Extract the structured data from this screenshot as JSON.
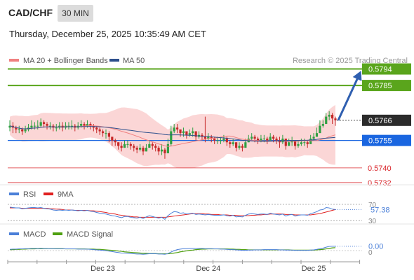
{
  "header": {
    "pair": "CAD/CHF",
    "interval": "30 MIN",
    "datetime": "Thursday, December 25, 2025 10:35:49 AM CET"
  },
  "watermark": "Research © 2025 Trading Central",
  "colors": {
    "green": "#5aa51c",
    "blue": "#1a66e0",
    "red": "#d9252b",
    "dark": "#2b2b2b",
    "rsi": "#4a7fd8",
    "ma9": "#e02020",
    "macd": "#4a7fd8",
    "signal": "#4fa010",
    "arrow": "#2f5fb0",
    "band": "#f9c8c8",
    "ma20": "#f08080",
    "ma50": "#2d4f8c"
  },
  "chart_data": [
    {
      "type": "candlestick",
      "panel": "price",
      "legend": [
        {
          "name": "MA 20 + Bollinger Bands",
          "color": "#f08080"
        },
        {
          "name": "MA 50",
          "color": "#2d4f8c"
        }
      ],
      "ylim": [
        0.57285,
        0.57965
      ],
      "levels": [
        {
          "value": 0.5794,
          "label": "0.5794",
          "style": "green-box"
        },
        {
          "value": 0.5785,
          "label": "0.5785",
          "style": "green-box"
        },
        {
          "value": 0.5766,
          "label": "0.5766",
          "style": "dark-box"
        },
        {
          "value": 0.5755,
          "label": "0.5755",
          "style": "blue-box"
        },
        {
          "value": 0.574,
          "label": "0.5740",
          "style": "red-text"
        },
        {
          "value": 0.5732,
          "label": "0.5732",
          "style": "red-text"
        }
      ],
      "close_series": [
        0.5763,
        0.5762,
        0.5761,
        0.5761,
        0.576,
        0.5761,
        0.5762,
        0.5763,
        0.5763,
        0.5763,
        0.5765,
        0.5764,
        0.5763,
        0.5763,
        0.5762,
        0.5762,
        0.5763,
        0.5762,
        0.5763,
        0.5763,
        0.5763,
        0.5762,
        0.5763,
        0.5764,
        0.5763,
        0.5764,
        0.5763,
        0.5762,
        0.5761,
        0.576,
        0.5759,
        0.5759,
        0.5757,
        0.5755,
        0.5754,
        0.5752,
        0.5751,
        0.5753,
        0.5753,
        0.5752,
        0.5751,
        0.575,
        0.5751,
        0.5749,
        0.5751,
        0.5753,
        0.5752,
        0.5751,
        0.5749,
        0.575,
        0.5748,
        0.5753,
        0.576,
        0.5762,
        0.5761,
        0.5759,
        0.576,
        0.5758,
        0.5759,
        0.576,
        0.5757,
        0.5758,
        0.5757,
        0.5756,
        0.5757,
        0.5756,
        0.5755,
        0.5755,
        0.5755,
        0.5756,
        0.5754,
        0.5753,
        0.5754,
        0.5751,
        0.5752,
        0.5751,
        0.5754,
        0.5756,
        0.5757,
        0.5756,
        0.5755,
        0.5756,
        0.5756,
        0.5755,
        0.5757,
        0.5756,
        0.5755,
        0.5754,
        0.5756,
        0.5752,
        0.5754,
        0.5755,
        0.5752,
        0.5753,
        0.5754,
        0.5754,
        0.5753,
        0.5756,
        0.5757,
        0.5759,
        0.5763,
        0.5764,
        0.5768,
        0.5769,
        0.5767,
        0.5766
      ],
      "high_series": [
        0.5766,
        0.5765,
        0.5763,
        0.5763,
        0.5762,
        0.5763,
        0.5764,
        0.5766,
        0.5765,
        0.5766,
        0.5767,
        0.5766,
        0.5765,
        0.5765,
        0.5764,
        0.5764,
        0.5765,
        0.5765,
        0.5765,
        0.5765,
        0.5766,
        0.5764,
        0.5765,
        0.5766,
        0.5765,
        0.5766,
        0.5765,
        0.5764,
        0.5763,
        0.5762,
        0.5761,
        0.5761,
        0.576,
        0.5757,
        0.5756,
        0.5754,
        0.5754,
        0.5755,
        0.5755,
        0.5754,
        0.5753,
        0.5752,
        0.5753,
        0.5752,
        0.5753,
        0.5755,
        0.5754,
        0.5753,
        0.5752,
        0.5753,
        0.5751,
        0.5756,
        0.5763,
        0.5764,
        0.5764,
        0.5761,
        0.5762,
        0.576,
        0.5761,
        0.5762,
        0.576,
        0.576,
        0.5759,
        0.5768,
        0.5759,
        0.5758,
        0.5757,
        0.5757,
        0.5757,
        0.5758,
        0.5757,
        0.5755,
        0.5756,
        0.5754,
        0.5754,
        0.5753,
        0.5756,
        0.5758,
        0.5759,
        0.5758,
        0.5757,
        0.5758,
        0.5758,
        0.5757,
        0.5759,
        0.5758,
        0.5757,
        0.5757,
        0.5758,
        0.5755,
        0.5756,
        0.5757,
        0.5755,
        0.5755,
        0.5756,
        0.5756,
        0.5755,
        0.5758,
        0.5759,
        0.5762,
        0.5766,
        0.5766,
        0.577,
        0.5771,
        0.577,
        0.5768
      ],
      "low_series": [
        0.576,
        0.5759,
        0.5759,
        0.5759,
        0.5758,
        0.5759,
        0.576,
        0.5761,
        0.5761,
        0.5761,
        0.5762,
        0.5762,
        0.5761,
        0.5761,
        0.576,
        0.576,
        0.5761,
        0.576,
        0.5761,
        0.5761,
        0.5761,
        0.576,
        0.5761,
        0.5762,
        0.5761,
        0.5762,
        0.5761,
        0.576,
        0.5759,
        0.5758,
        0.5757,
        0.5756,
        0.5754,
        0.5752,
        0.5752,
        0.575,
        0.5749,
        0.5751,
        0.5751,
        0.575,
        0.5749,
        0.5748,
        0.5749,
        0.5747,
        0.5749,
        0.5751,
        0.575,
        0.5749,
        0.5747,
        0.5747,
        0.5745,
        0.5748,
        0.5752,
        0.5759,
        0.5759,
        0.5757,
        0.5757,
        0.5756,
        0.5757,
        0.5757,
        0.5755,
        0.5756,
        0.5755,
        0.5754,
        0.5755,
        0.5754,
        0.5753,
        0.5753,
        0.5753,
        0.5754,
        0.5752,
        0.5751,
        0.5752,
        0.5749,
        0.575,
        0.5749,
        0.5751,
        0.5754,
        0.5755,
        0.5754,
        0.5753,
        0.5754,
        0.5754,
        0.5753,
        0.5755,
        0.5754,
        0.5753,
        0.5751,
        0.5753,
        0.575,
        0.5752,
        0.5752,
        0.575,
        0.5751,
        0.5752,
        0.5752,
        0.5751,
        0.5753,
        0.5755,
        0.5757,
        0.576,
        0.5762,
        0.5765,
        0.5766,
        0.5764,
        0.5763
      ],
      "projection": {
        "from": 0.5766,
        "to": 0.5794
      }
    },
    {
      "type": "line",
      "panel": "rsi",
      "legend": [
        {
          "name": "RSI",
          "color": "#4a7fd8"
        },
        {
          "name": "9MA",
          "color": "#e02020"
        }
      ],
      "ylim": [
        25,
        80
      ],
      "ticks": [
        "70",
        "30"
      ],
      "value_label": "57.38",
      "rsi": [
        63,
        62,
        61,
        61,
        59,
        60,
        61,
        62,
        62,
        61,
        62,
        60,
        59,
        58,
        56,
        55,
        56,
        55,
        56,
        55,
        56,
        55,
        54,
        55,
        54,
        55,
        53,
        52,
        50,
        48,
        47,
        46,
        44,
        42,
        41,
        39,
        37,
        40,
        40,
        38,
        37,
        36,
        38,
        35,
        39,
        42,
        40,
        38,
        36,
        38,
        33,
        42,
        48,
        52,
        51,
        48,
        49,
        46,
        47,
        48,
        45,
        46,
        45,
        44,
        45,
        44,
        43,
        43,
        43,
        44,
        42,
        41,
        43,
        39,
        40,
        39,
        43,
        46,
        47,
        46,
        45,
        46,
        46,
        45,
        48,
        46,
        45,
        44,
        46,
        41,
        44,
        45,
        41,
        43,
        44,
        44,
        43,
        47,
        49,
        52,
        56,
        57,
        62,
        61,
        58,
        57
      ],
      "ma9": [
        61,
        61,
        61,
        61,
        60,
        60,
        60,
        60,
        60,
        60,
        60,
        60,
        60,
        59,
        59,
        58,
        58,
        57,
        56,
        56,
        56,
        55,
        55,
        55,
        55,
        55,
        54,
        54,
        53,
        52,
        51,
        50,
        48,
        47,
        46,
        44,
        43,
        42,
        41,
        40,
        39,
        39,
        38,
        38,
        38,
        38,
        38,
        38,
        38,
        38,
        38,
        39,
        40,
        41,
        42,
        43,
        44,
        45,
        46,
        47,
        47,
        47,
        47,
        46,
        46,
        45,
        45,
        45,
        44,
        44,
        44,
        43,
        43,
        43,
        42,
        42,
        42,
        42,
        43,
        43,
        44,
        44,
        45,
        45,
        46,
        46,
        46,
        46,
        46,
        45,
        45,
        45,
        44,
        44,
        44,
        44,
        44,
        44,
        45,
        46,
        47,
        49,
        51,
        53,
        55,
        57
      ]
    },
    {
      "type": "line",
      "panel": "macd",
      "legend": [
        {
          "name": "MACD",
          "color": "#4a7fd8"
        },
        {
          "name": "MACD Signal",
          "color": "#4fa010"
        }
      ],
      "ylim": [
        -0.0004,
        0.0004
      ],
      "ticks": [
        "0"
      ],
      "value_label": "0.00",
      "macd": [
        5e-05,
        6e-05,
        6e-05,
        7e-05,
        7e-05,
        8e-05,
        8e-05,
        9e-05,
        9e-05,
        9e-05,
        0.0001,
        9e-05,
        9e-05,
        8e-05,
        8e-05,
        7e-05,
        7e-05,
        7e-05,
        7e-05,
        7e-05,
        7e-05,
        7e-05,
        6e-05,
        6e-05,
        6e-05,
        6e-05,
        5e-05,
        4e-05,
        3e-05,
        2e-05,
        1e-05,
        0,
        -2e-05,
        -4e-05,
        -6e-05,
        -8e-05,
        -0.0001,
        -0.0001,
        -0.00011,
        -0.00012,
        -0.00013,
        -0.00014,
        -0.00014,
        -0.00015,
        -0.00014,
        -0.00013,
        -0.00013,
        -0.00013,
        -0.00014,
        -0.00014,
        -0.00015,
        -0.00012,
        -6e-05,
        0,
        4e-05,
        6e-05,
        8e-05,
        8e-05,
        9e-05,
        9e-05,
        9e-05,
        9e-05,
        9e-05,
        8e-05,
        8e-05,
        8e-05,
        7e-05,
        7e-05,
        6e-05,
        6e-05,
        5e-05,
        4e-05,
        4e-05,
        3e-05,
        2e-05,
        1e-05,
        1e-05,
        2e-05,
        2e-05,
        3e-05,
        3e-05,
        3e-05,
        4e-05,
        4e-05,
        4e-05,
        4e-05,
        4e-05,
        3e-05,
        3e-05,
        2e-05,
        2e-05,
        2e-05,
        1e-05,
        1e-05,
        1e-05,
        1e-05,
        1e-05,
        2e-05,
        3e-05,
        5e-05,
        8e-05,
        0.0001,
        0.00014,
        0.00017,
        0.00018,
        0.00018
      ],
      "signal": [
        4e-05,
        4e-05,
        5e-05,
        5e-05,
        6e-05,
        6e-05,
        7e-05,
        7e-05,
        7e-05,
        8e-05,
        8e-05,
        8e-05,
        8e-05,
        8e-05,
        8e-05,
        8e-05,
        8e-05,
        8e-05,
        7e-05,
        7e-05,
        7e-05,
        7e-05,
        7e-05,
        7e-05,
        7e-05,
        6e-05,
        6e-05,
        6e-05,
        5e-05,
        5e-05,
        4e-05,
        3e-05,
        2e-05,
        1e-05,
        0,
        -2e-05,
        -3e-05,
        -5e-05,
        -6e-05,
        -7e-05,
        -8e-05,
        -9e-05,
        -0.0001,
        -0.00011,
        -0.00011,
        -0.00012,
        -0.00012,
        -0.00012,
        -0.00013,
        -0.00013,
        -0.00013,
        -0.00013,
        -0.00012,
        -0.0001,
        -8e-05,
        -5e-05,
        -3e-05,
        -1e-05,
        1e-05,
        2e-05,
        4e-05,
        5e-05,
        6e-05,
        6e-05,
        7e-05,
        7e-05,
        7e-05,
        7e-05,
        7e-05,
        7e-05,
        7e-05,
        6e-05,
        6e-05,
        5e-05,
        5e-05,
        4e-05,
        4e-05,
        3e-05,
        3e-05,
        3e-05,
        3e-05,
        3e-05,
        3e-05,
        3e-05,
        3e-05,
        3e-05,
        3e-05,
        3e-05,
        3e-05,
        3e-05,
        3e-05,
        2e-05,
        2e-05,
        2e-05,
        2e-05,
        2e-05,
        2e-05,
        2e-05,
        2e-05,
        3e-05,
        4e-05,
        5e-05,
        7e-05,
        9e-05,
        0.00011,
        0.00012
      ]
    }
  ],
  "xaxis": {
    "labels": [
      {
        "text": "Dec 23",
        "index": 30
      },
      {
        "text": "Dec 24",
        "index": 64
      },
      {
        "text": "Dec 25",
        "index": 98
      }
    ]
  }
}
